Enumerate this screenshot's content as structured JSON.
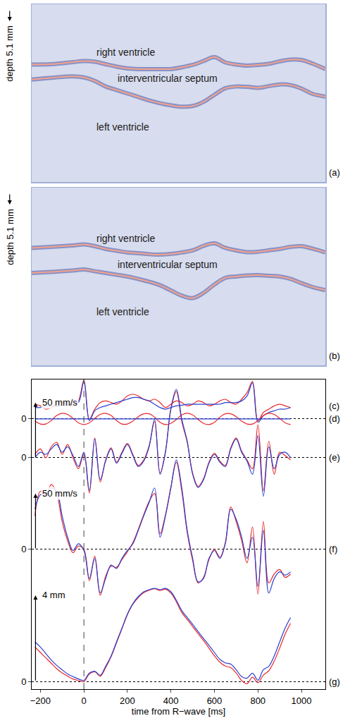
{
  "chart_data": [
    {
      "type": "line",
      "panel_label": "(a)",
      "y_label": "depth 5.1 mm",
      "xlim": [
        -240,
        1110
      ],
      "ylim": [
        5.1,
        0
      ],
      "tick_labels": false,
      "x": [
        -240,
        -150,
        -50,
        0,
        50,
        100,
        150,
        200,
        250,
        300,
        350,
        400,
        450,
        500,
        550,
        600,
        650,
        700,
        750,
        800,
        850,
        900,
        950,
        1000,
        1050,
        1110
      ],
      "series": [
        {
          "color": "#f4a28c",
          "values": [
            1.73,
            1.72,
            1.66,
            1.63,
            1.65,
            1.72,
            1.79,
            1.84,
            1.86,
            1.86,
            1.86,
            1.86,
            1.81,
            1.74,
            1.63,
            1.52,
            1.67,
            1.73,
            1.76,
            1.74,
            1.71,
            1.64,
            1.59,
            1.6,
            1.7,
            1.86
          ]
        },
        {
          "color": "#f4a28c",
          "values": [
            2.16,
            2.11,
            2.07,
            2.1,
            2.2,
            2.36,
            2.46,
            2.56,
            2.66,
            2.76,
            2.84,
            2.9,
            2.94,
            2.92,
            2.8,
            2.6,
            2.41,
            2.36,
            2.37,
            2.4,
            2.35,
            2.3,
            2.32,
            2.42,
            2.57,
            2.65
          ]
        }
      ],
      "annotations": [
        {
          "text": "right ventricle",
          "x": 50,
          "y": 1.37
        },
        {
          "text": "interventricular septum",
          "x": 150,
          "y": 2.12
        },
        {
          "text": "left ventricle",
          "x": 50,
          "y": 3.53
        }
      ]
    },
    {
      "type": "line",
      "panel_label": "(b)",
      "y_label": "depth 5.1 mm",
      "xlim": [
        -240,
        1110
      ],
      "ylim": [
        5.1,
        0
      ],
      "tick_labels": false,
      "x": [
        -240,
        -150,
        -50,
        0,
        50,
        100,
        150,
        200,
        250,
        300,
        350,
        400,
        450,
        500,
        550,
        600,
        650,
        700,
        750,
        800,
        850,
        900,
        950,
        1000,
        1050,
        1110
      ],
      "series": [
        {
          "color": "#f4a28c",
          "values": [
            1.73,
            1.7,
            1.66,
            1.63,
            1.68,
            1.76,
            1.81,
            1.86,
            1.88,
            1.91,
            1.92,
            1.9,
            1.86,
            1.8,
            1.67,
            1.6,
            1.73,
            1.8,
            1.85,
            1.84,
            1.8,
            1.76,
            1.7,
            1.68,
            1.75,
            1.86
          ]
        },
        {
          "color": "#f4a28c",
          "values": [
            2.45,
            2.42,
            2.38,
            2.35,
            2.4,
            2.45,
            2.5,
            2.55,
            2.62,
            2.7,
            2.8,
            2.95,
            3.1,
            3.17,
            3.02,
            2.78,
            2.59,
            2.55,
            2.52,
            2.51,
            2.53,
            2.55,
            2.62,
            2.74,
            2.85,
            2.94
          ]
        }
      ],
      "annotations": [
        {
          "text": "right ventricle",
          "x": 50,
          "y": 1.45
        },
        {
          "text": "interventricular septum",
          "x": 150,
          "y": 2.2
        },
        {
          "text": "left ventricle",
          "x": 50,
          "y": 3.57
        }
      ]
    },
    {
      "type": "line",
      "x_label": "time from R−wave [ms]",
      "xlim": [
        -240,
        1110
      ],
      "xticks": [
        {
          "value": -200,
          "label": "−200"
        },
        0,
        200,
        400,
        600,
        800,
        1000
      ],
      "grid": true,
      "reference_lines": [
        0
      ],
      "x": [
        -225,
        -200,
        -175,
        -150,
        -125,
        -100,
        -75,
        -50,
        -25,
        0,
        25,
        50,
        75,
        100,
        125,
        150,
        175,
        200,
        225,
        250,
        275,
        300,
        325,
        350,
        375,
        400,
        425,
        450,
        475,
        500,
        525,
        550,
        575,
        600,
        625,
        650,
        675,
        700,
        725,
        750,
        775,
        800,
        825,
        850,
        875,
        900,
        925,
        950
      ],
      "panels": [
        {
          "label": "(c)",
          "ylim": [
            -8.6,
            0.8
          ],
          "yticks": [],
          "series": [
            {
              "color": "#e8282c",
              "values": [
                0.05,
                0,
                -0.1,
                -0.05,
                0.05,
                0.1,
                0.05,
                0,
                0.15,
                0.78,
                -0.4,
                -0.1,
                0.1,
                0.15,
                0.1,
                0.05,
                0.15,
                0.3,
                0.35,
                0.3,
                0.2,
                0.15,
                0.2,
                0.1,
                -0.05,
                0.05,
                0.15,
                0.1,
                0,
                0.05,
                0.15,
                0.1,
                0,
                0.05,
                0.15,
                0.2,
                0.1,
                0.05,
                0.2,
                0.4,
                0.74,
                -0.45,
                -0.2,
                -0.1,
                0,
                0.05,
                0,
                -0.05
              ]
            },
            {
              "color": "#2b3fd0",
              "values": [
                -0.05,
                -0.05,
                -0.02,
                0,
                -0.02,
                0,
                0.02,
                0.05,
                0.1,
                0.75,
                -0.45,
                -0.15,
                -0.05,
                0,
                0.05,
                0.1,
                0.15,
                0.2,
                0.25,
                0.25,
                0.2,
                0.15,
                0.05,
                -0.05,
                -0.1,
                -0.05,
                0,
                0.02,
                0.05,
                0.05,
                0.05,
                0.05,
                0.05,
                0.05,
                0.05,
                0.1,
                0.1,
                0.1,
                0.15,
                0.3,
                0.7,
                -0.5,
                -0.3,
                -0.2,
                -0.15,
                -0.1,
                -0.1,
                -0.05
              ]
            }
          ]
        },
        {
          "label": "(d)",
          "ylim": [
            -48,
            7
          ],
          "yticks": [
            0
          ],
          "series": [
            {
              "color": "#e8282c",
              "values": [
                -0.4,
                -0.9,
                -0.9,
                -0.3,
                0.6,
                1,
                0.8,
                0.1,
                -0.7,
                -1,
                -0.7,
                0.1,
                0.8,
                1,
                0.6,
                -0.3,
                -0.9,
                -0.9,
                -0.4,
                0.4,
                0.9,
                0.9,
                0.3,
                -0.6,
                -1,
                -0.8,
                -0.1,
                0.7,
                1,
                0.7,
                -0.1,
                -0.8,
                -1,
                -0.6,
                0.3,
                0.9,
                0.9,
                0.4,
                -0.4,
                -0.9,
                -0.9,
                -0.3,
                0.6,
                1,
                0.8,
                0.1,
                -0.7,
                -1
              ]
            },
            {
              "color": "#2b3fd0",
              "values": [
                0,
                0,
                0,
                0,
                0,
                0,
                0,
                0,
                0,
                0,
                0,
                0,
                0,
                0,
                0,
                0,
                0,
                0,
                0,
                0,
                0,
                0,
                0,
                0,
                0,
                0,
                0,
                0,
                0,
                0,
                0,
                0,
                0,
                0,
                0,
                0,
                0,
                0,
                0,
                0,
                0,
                0,
                0,
                0,
                0,
                0,
                0,
                0
              ]
            }
          ]
        },
        {
          "label": "(e)",
          "ylim": [
            -210,
            71
          ],
          "yticks": [
            0
          ],
          "series": [
            {
              "color": "#e8282c",
              "values": [
                3,
                8,
                0,
                10,
                14,
                3,
                12,
                0,
                -10,
                4,
                -32,
                18,
                -22,
                -2,
                9,
                -4,
                5,
                13,
                3,
                -7,
                -2,
                11,
                33,
                -14,
                6,
                44,
                60,
                33,
                14,
                -14,
                -26,
                -19,
                -4,
                4,
                -3,
                -7,
                9,
                18,
                6,
                -2,
                -10,
                30,
                -30,
                15,
                -15,
                5,
                2,
                -2
              ]
            },
            {
              "color": "#2b3fd0",
              "values": [
                0,
                5,
                3,
                8,
                12,
                5,
                10,
                2,
                -8,
                5,
                -30,
                17,
                -20,
                -3,
                8,
                -5,
                4,
                12,
                2,
                -8,
                -3,
                10,
                35,
                -15,
                5,
                45,
                62,
                35,
                15,
                -15,
                -27,
                -20,
                -5,
                3,
                -4,
                -8,
                8,
                17,
                5,
                -3,
                -15,
                20,
                -35,
                10,
                -10,
                3,
                5,
                0
              ]
            }
          ]
        },
        {
          "label": "(f)",
          "ylim": [
            -125,
            152
          ],
          "yticks": [
            0
          ],
          "series": [
            {
              "color": "#e8282c",
              "values": [
                30,
                52,
                48,
                58,
                50,
                25,
                8,
                -3,
                3,
                0,
                -28,
                -6,
                -41,
                -24,
                -15,
                -16,
                -9,
                -2,
                6,
                18,
                31,
                43,
                50,
                14,
                31,
                56,
                78,
                52,
                15,
                -10,
                -30,
                -25,
                -9,
                0,
                -7,
                6,
                38,
                25,
                8,
                -12,
                20,
                -40,
                25,
                -30,
                -22,
                -18,
                -25,
                -22
              ]
            },
            {
              "color": "#2b3fd0",
              "values": [
                36,
                49,
                50,
                55,
                52,
                30,
                11,
                -1,
                5,
                -1,
                -26,
                -8,
                -39,
                -26,
                -14,
                -17,
                -8,
                -1,
                5,
                17,
                30,
                42,
                55,
                11,
                30,
                55,
                80,
                55,
                17,
                -8,
                -29,
                -26,
                -8,
                -1,
                -8,
                5,
                36,
                27,
                11,
                -8,
                11,
                -33,
                17,
                -39,
                -26,
                -20,
                -23,
                -20
              ]
            }
          ]
        },
        {
          "label": "(g)",
          "ylim": [
            -0.35,
            14
          ],
          "yticks": [
            0
          ],
          "series": [
            {
              "color": "#e8282c",
              "values": [
                1.6,
                1.35,
                1.1,
                0.85,
                0.6,
                0.4,
                0.25,
                0.12,
                0.05,
                0.0,
                0.35,
                0.45,
                0.25,
                0.65,
                1.15,
                1.8,
                2.45,
                3.1,
                3.58,
                3.9,
                4.12,
                4.24,
                4.3,
                4.22,
                4.28,
                4.1,
                3.7,
                3.2,
                2.88,
                2.55,
                2.22,
                1.9,
                1.55,
                1.2,
                0.9,
                0.72,
                0.65,
                0.4,
                0.05,
                -0.1,
                0.2,
                -0.05,
                0.3,
                0.5,
                0.95,
                1.55,
                2.2,
                2.7
              ]
            },
            {
              "color": "#2b3fd0",
              "values": [
                1.84,
                1.6,
                1.3,
                1.0,
                0.75,
                0.55,
                0.35,
                0.23,
                0.12,
                0.06,
                0.39,
                0.48,
                0.29,
                0.71,
                1.19,
                1.84,
                2.48,
                3.13,
                3.61,
                3.94,
                4.16,
                4.26,
                4.32,
                4.26,
                4.32,
                4.16,
                3.77,
                3.29,
                2.97,
                2.65,
                2.32,
                2.0,
                1.68,
                1.35,
                1.03,
                0.87,
                0.81,
                0.55,
                0.23,
                0.16,
                0.39,
                0.06,
                0.55,
                0.71,
                1.19,
                1.84,
                2.48,
                2.97
              ]
            }
          ]
        }
      ],
      "scale_bars": [
        {
          "panel": "(e)",
          "value": 50,
          "label": "50 mm/s"
        },
        {
          "panel": "(f)",
          "value": 50,
          "label": "50 mm/s"
        },
        {
          "panel": "(g)",
          "value": 4,
          "label": "4 mm"
        }
      ]
    }
  ]
}
